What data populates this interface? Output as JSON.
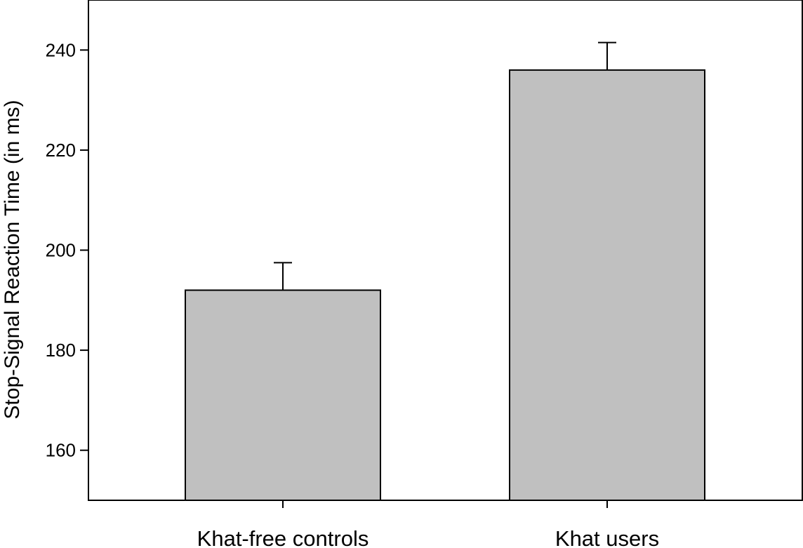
{
  "chart_data": {
    "type": "bar",
    "categories": [
      "Khat-free controls",
      "Khat users"
    ],
    "values": [
      192,
      236
    ],
    "error_upper": [
      197.5,
      241.5
    ],
    "title": "",
    "xlabel": "",
    "ylabel": "Stop-Signal Reaction Time (in ms)",
    "ylim": [
      150,
      250
    ],
    "yticks": [
      160,
      180,
      200,
      220,
      240
    ],
    "grid": false,
    "legend": "none",
    "colors": {
      "bar_fill": "#c0c0c0",
      "bar_stroke": "#000000",
      "axis": "#000000",
      "background": "#ffffff"
    }
  }
}
